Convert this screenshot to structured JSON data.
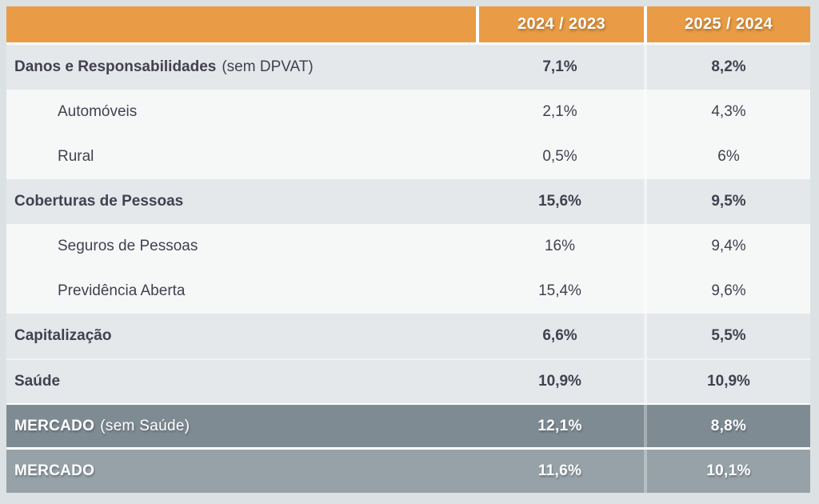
{
  "theme": {
    "page_bg": "#dce1e3",
    "header_bg": "#e99c45",
    "category_row_bg": "#e4e8ea",
    "sub_row_bg": "#f6f8f8",
    "market_dark_bg": "#7f8b93",
    "market_light_bg": "#96a2a8",
    "dark_text": "#434050",
    "light_text": "#ffffff"
  },
  "table": {
    "header": {
      "label": "",
      "col1": "2024 / 2023",
      "col2": "2025 / 2024"
    },
    "rows": [
      {
        "label": "Danos e Responsabilidades",
        "suffix": "(sem DPVAT)",
        "col1": "7,1%",
        "col2": "8,2%",
        "style": "category"
      },
      {
        "label": "Automóveis",
        "suffix": "",
        "col1": "2,1%",
        "col2": "4,3%",
        "style": "sub"
      },
      {
        "label": "Rural",
        "suffix": "",
        "col1": "0,5%",
        "col2": "6%",
        "style": "sub"
      },
      {
        "label": "Coberturas de Pessoas",
        "suffix": "",
        "col1": "15,6%",
        "col2": "9,5%",
        "style": "category"
      },
      {
        "label": "Seguros de Pessoas",
        "suffix": "",
        "col1": "16%",
        "col2": "9,4%",
        "style": "sub"
      },
      {
        "label": "Previdência Aberta",
        "suffix": "",
        "col1": "15,4%",
        "col2": "9,6%",
        "style": "sub"
      },
      {
        "label": "Capitalização",
        "suffix": "",
        "col1": "6,6%",
        "col2": "5,5%",
        "style": "category"
      },
      {
        "label": "Saúde",
        "suffix": "",
        "col1": "10,9%",
        "col2": "10,9%",
        "style": "category saude-sep"
      },
      {
        "label": "MERCADO",
        "suffix": "(sem Saúde)",
        "col1": "12,1%",
        "col2": "8,8%",
        "style": "market-dark"
      },
      {
        "label": "MERCADO",
        "suffix": "",
        "col1": "11,6%",
        "col2": "10,1%",
        "style": "market-light"
      }
    ]
  },
  "chart_data": {
    "type": "table",
    "title": "",
    "columns": [
      "",
      "2024 / 2023",
      "2025 / 2024"
    ],
    "rows": [
      [
        "Danos e Responsabilidades (sem DPVAT)",
        "7,1%",
        "8,2%"
      ],
      [
        "Automóveis",
        "2,1%",
        "4,3%"
      ],
      [
        "Rural",
        "0,5%",
        "6%"
      ],
      [
        "Coberturas de Pessoas",
        "15,6%",
        "9,5%"
      ],
      [
        "Seguros de Pessoas",
        "16%",
        "9,4%"
      ],
      [
        "Previdência Aberta",
        "15,4%",
        "9,6%"
      ],
      [
        "Capitalização",
        "6,6%",
        "5,5%"
      ],
      [
        "Saúde",
        "10,9%",
        "10,9%"
      ],
      [
        "MERCADO (sem Saúde)",
        "12,1%",
        "8,8%"
      ],
      [
        "MERCADO",
        "11,6%",
        "10,1%"
      ]
    ],
    "series": [
      {
        "name": "2024 / 2023",
        "values": [
          7.1,
          2.1,
          0.5,
          15.6,
          16,
          15.4,
          6.6,
          10.9,
          12.1,
          11.6
        ]
      },
      {
        "name": "2025 / 2024",
        "values": [
          8.2,
          4.3,
          6,
          9.5,
          9.4,
          9.6,
          5.5,
          10.9,
          8.8,
          10.1
        ]
      }
    ]
  }
}
